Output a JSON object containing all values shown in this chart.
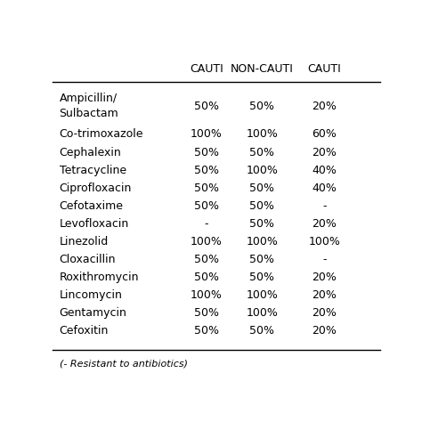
{
  "columns": [
    "CAUTI",
    "NON-CAUTI",
    "CAUTI"
  ],
  "rows": [
    {
      "antibiotic": "Ampicillin/\nSulbactam",
      "col1": "50%",
      "col2": "50%",
      "col3": "20%"
    },
    {
      "antibiotic": "Co-trimoxazole",
      "col1": "100%",
      "col2": "100%",
      "col3": "60%"
    },
    {
      "antibiotic": "Cephalexin",
      "col1": "50%",
      "col2": "50%",
      "col3": "20%"
    },
    {
      "antibiotic": "Tetracycline",
      "col1": "50%",
      "col2": "100%",
      "col3": "40%"
    },
    {
      "antibiotic": "Ciprofloxacin",
      "col1": "50%",
      "col2": "50%",
      "col3": "40%"
    },
    {
      "antibiotic": "Cefotaxime",
      "col1": "50%",
      "col2": "50%",
      "col3": "-"
    },
    {
      "antibiotic": "Levofloxacin",
      "col1": "-",
      "col2": "50%",
      "col3": "20%"
    },
    {
      "antibiotic": "Linezolid",
      "col1": "100%",
      "col2": "100%",
      "col3": "100%"
    },
    {
      "antibiotic": "Cloxacillin",
      "col1": "50%",
      "col2": "50%",
      "col3": "-"
    },
    {
      "antibiotic": "Roxithromycin",
      "col1": "50%",
      "col2": "50%",
      "col3": "20%"
    },
    {
      "antibiotic": "Lincomycin",
      "col1": "100%",
      "col2": "100%",
      "col3": "20%"
    },
    {
      "antibiotic": "Gentamycin",
      "col1": "50%",
      "col2": "100%",
      "col3": "20%"
    },
    {
      "antibiotic": "Cefoxitin",
      "col1": "50%",
      "col2": "50%",
      "col3": "20%"
    }
  ],
  "footer": "(- Resistant to antibiotics)",
  "bg_color": "#ffffff",
  "text_color": "#000000",
  "header_line_color": "#000000",
  "col_header_fontsize": 9,
  "cell_fontsize": 9,
  "antibiotic_fontsize": 9
}
